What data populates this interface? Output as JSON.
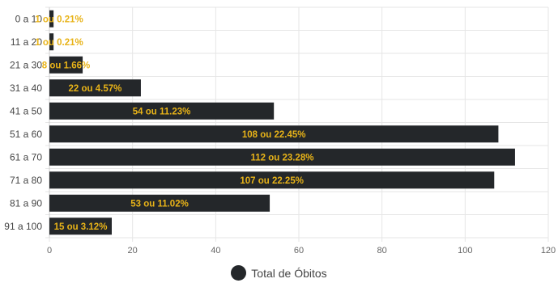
{
  "chart_data": {
    "type": "bar",
    "orientation": "horizontal",
    "categories": [
      "0 a 10",
      "11 a 20",
      "21 a 30",
      "31 a 40",
      "41 a 50",
      "51 a 60",
      "61 a 70",
      "71 a 80",
      "81 a 90",
      "91 a 100"
    ],
    "series": [
      {
        "name": "Total de Óbitos",
        "values": [
          1,
          1,
          8,
          22,
          54,
          108,
          112,
          107,
          53,
          15
        ],
        "labels": [
          "1 ou 0.21%",
          "1 ou 0.21%",
          "8 ou 1.66%",
          "22 ou 4.57%",
          "54 ou 11.23%",
          "108 ou 22.45%",
          "112 ou 23.28%",
          "107 ou 22.25%",
          "53 ou 11.02%",
          "15 ou 3.12%"
        ]
      }
    ],
    "xlim": [
      0,
      120
    ],
    "xticks": [
      0,
      20,
      40,
      60,
      80,
      100,
      120
    ],
    "grid": true,
    "legend_position": "bottom",
    "bar_color": "#24272a",
    "label_color": "#e8b318"
  }
}
